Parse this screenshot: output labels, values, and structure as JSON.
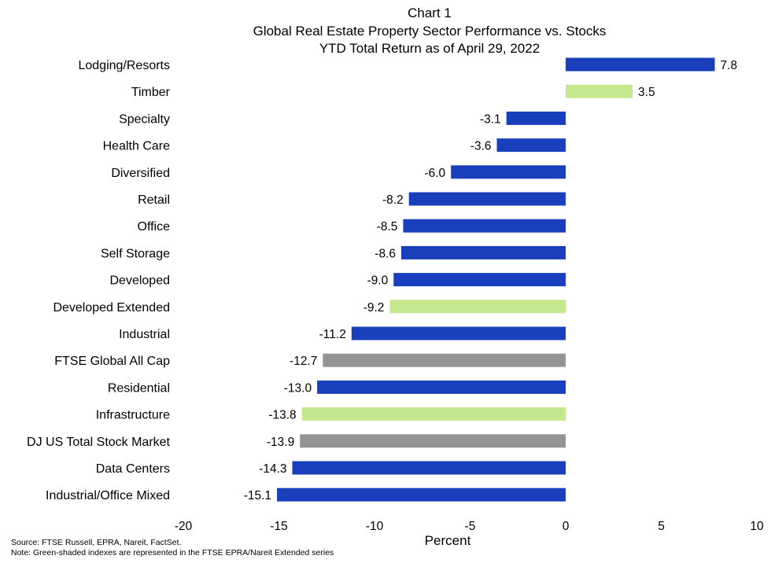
{
  "chart_data": {
    "type": "bar",
    "orientation": "horizontal",
    "title": "Chart 1",
    "subtitle": [
      "Global Real Estate Property Sector Performance vs. Stocks",
      "YTD Total Return as of April 29, 2022"
    ],
    "xlabel": "Percent",
    "ylabel": "",
    "xlim": [
      -20,
      10
    ],
    "xticks": [
      -20,
      -15,
      -10,
      -5,
      0,
      5,
      10
    ],
    "grid": false,
    "categories": [
      "Lodging/Resorts",
      "Timber",
      "Specialty",
      "Health Care",
      "Diversified",
      "Retail",
      "Office",
      "Self Storage",
      "Developed",
      "Developed Extended",
      "Industrial",
      "FTSE Global All Cap",
      "Residential",
      "Infrastructure",
      "DJ US Total Stock Market",
      "Data Centers",
      "Industrial/Office Mixed"
    ],
    "values": [
      7.8,
      3.5,
      -3.1,
      -3.6,
      -6.0,
      -8.2,
      -8.5,
      -8.6,
      -9.0,
      -9.2,
      -11.2,
      -12.7,
      -13.0,
      -13.8,
      -13.9,
      -14.3,
      -15.1
    ],
    "value_labels": [
      "7.8",
      "3.5",
      "-3.1",
      "-3.6",
      "-6.0",
      "-8.2",
      "-8.5",
      "-8.6",
      "-9.0",
      "-9.2",
      "-11.2",
      "-12.7",
      "-13.0",
      "-13.8",
      "-13.9",
      "-14.3",
      "-15.1"
    ],
    "bar_groups": [
      "sector",
      "extended",
      "sector",
      "sector",
      "sector",
      "sector",
      "sector",
      "sector",
      "sector",
      "extended",
      "sector",
      "benchmark",
      "sector",
      "extended",
      "benchmark",
      "sector",
      "sector"
    ],
    "colors": {
      "sector": "#1a3fbd",
      "extended": "#c5e88f",
      "benchmark": "#949494"
    }
  },
  "footnotes": {
    "source": "Source: FTSE Russell, EPRA, Nareit, FactSet.",
    "note": "Note: Green-shaded indexes are represented in the FTSE EPRA/Nareit Extended series"
  }
}
